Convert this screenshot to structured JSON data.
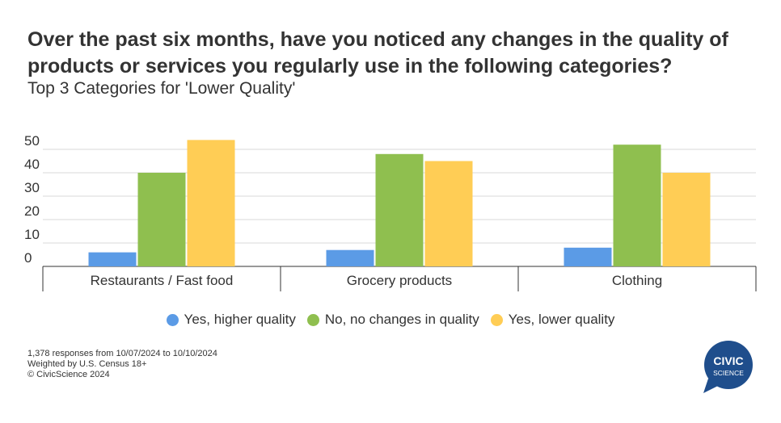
{
  "header": {
    "title": "Over the past six months, have you noticed any changes in the quality of products or services you regularly use in the following categories?",
    "subtitle": "Top 3 Categories for 'Lower Quality'"
  },
  "chart_data": {
    "type": "bar",
    "title": "Over the past six months, have you noticed any changes in the quality of products or services you regularly use in the following categories?",
    "subtitle": "Top 3 Categories for 'Lower Quality'",
    "categories": [
      "Restaurants / Fast food",
      "Grocery products",
      "Clothing"
    ],
    "series": [
      {
        "name": "Yes, higher quality",
        "color": "#5b9be6",
        "values": [
          6,
          7,
          8
        ]
      },
      {
        "name": "No, no changes in quality",
        "color": "#8fbf4f",
        "values": [
          40,
          48,
          52
        ]
      },
      {
        "name": "Yes, lower quality",
        "color": "#ffcd55",
        "values": [
          54,
          45,
          40
        ]
      }
    ],
    "yticks": [
      0,
      10,
      20,
      30,
      40,
      50
    ],
    "ylim": [
      0,
      55
    ],
    "grid": true,
    "legend": "bottom"
  },
  "footer": {
    "lines": [
      "1,378 responses from 10/07/2024 to 10/10/2024",
      "Weighted by U.S. Census 18+",
      "© CivicScience 2024"
    ]
  },
  "logo": {
    "line1": "CIVIC",
    "line2": "SCIENCE",
    "color": "#1f4e8c"
  }
}
